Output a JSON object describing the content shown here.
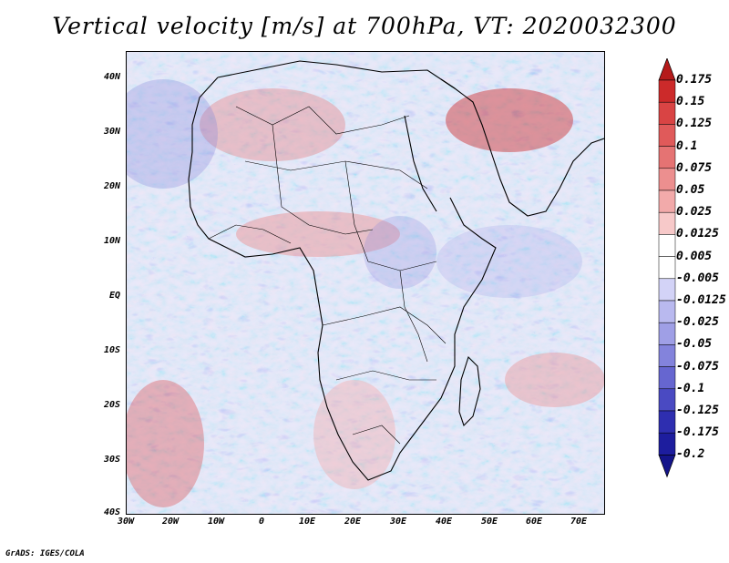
{
  "title": "Vertical velocity [m/s] at 700hPa, VT: 2020032300",
  "footer": "GrADS: IGES/COLA",
  "map": {
    "lat_labels": [
      "40N",
      "30N",
      "20N",
      "10N",
      "EQ",
      "10S",
      "20S",
      "30S",
      "40S"
    ],
    "lon_labels": [
      "30W",
      "20W",
      "10W",
      "0",
      "10E",
      "20E",
      "30E",
      "40E",
      "50E",
      "60E",
      "70E"
    ]
  },
  "colorbar": {
    "labels": [
      "0.175",
      "0.15",
      "0.125",
      "0.1",
      "0.075",
      "0.05",
      "0.025",
      "0.0125",
      "0.005",
      "-0.005",
      "-0.0125",
      "-0.025",
      "-0.05",
      "-0.075",
      "-0.1",
      "-0.125",
      "-0.175",
      "-0.2"
    ],
    "colors": [
      "#b51a1a",
      "#cc2a2a",
      "#d94444",
      "#e05a5a",
      "#e57373",
      "#ec8f8f",
      "#f2aaaa",
      "#f7c9c9",
      "#ffffff",
      "#ffffff",
      "#d3d3f7",
      "#b9b9ef",
      "#9f9fe6",
      "#8383dc",
      "#6666d0",
      "#4a4ac2",
      "#2e2eb0",
      "#1d1d9e",
      "#14148a"
    ]
  }
}
